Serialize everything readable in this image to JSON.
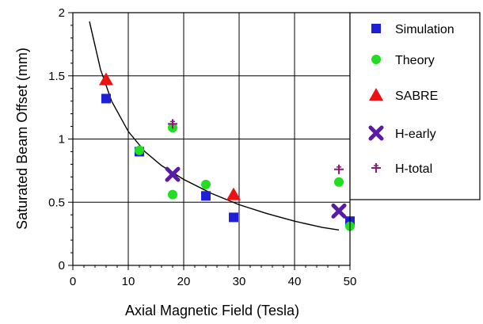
{
  "chart_data": {
    "type": "scatter",
    "title": "",
    "xlabel": "Axial Magnetic Field (Tesla)",
    "ylabel": "Saturated Beam Offset (mm)",
    "xlim": [
      0,
      50
    ],
    "ylim": [
      0,
      2
    ],
    "x_ticks": [
      0,
      10,
      20,
      30,
      40,
      50
    ],
    "y_ticks": [
      0,
      0.5,
      1,
      1.5,
      2
    ],
    "y_tick_labels": [
      "0",
      "0.5",
      "1",
      "1.5",
      "2"
    ],
    "grid": true,
    "legend_position": "right",
    "series": [
      {
        "name": "Simulation",
        "marker": "square",
        "color": "#1f1fd6",
        "points": [
          [
            6,
            1.32
          ],
          [
            12,
            0.9
          ],
          [
            24,
            0.55
          ],
          [
            29,
            0.38
          ],
          [
            50,
            0.35
          ]
        ]
      },
      {
        "name": "Theory",
        "marker": "circle",
        "color": "#22dd22",
        "points": [
          [
            12,
            0.91
          ],
          [
            18,
            1.09
          ],
          [
            18,
            0.56
          ],
          [
            24,
            0.64
          ],
          [
            48,
            0.66
          ],
          [
            50,
            0.31
          ]
        ]
      },
      {
        "name": "SABRE",
        "marker": "triangle",
        "color": "#ee1111",
        "points": [
          [
            6,
            1.47
          ],
          [
            29,
            0.56
          ]
        ]
      },
      {
        "name": "H-early",
        "marker": "x",
        "color": "#5a1aa8",
        "points": [
          [
            18,
            0.72
          ],
          [
            48,
            0.43
          ]
        ]
      },
      {
        "name": "H-total",
        "marker": "plus",
        "color": "#8a1a7a",
        "points": [
          [
            18,
            1.12
          ],
          [
            48,
            0.76
          ]
        ]
      }
    ],
    "fit_curve": {
      "color": "#000000",
      "points": [
        [
          3,
          1.93
        ],
        [
          5,
          1.55
        ],
        [
          7,
          1.3
        ],
        [
          10,
          1.06
        ],
        [
          13,
          0.9
        ],
        [
          16,
          0.79
        ],
        [
          20,
          0.68
        ],
        [
          25,
          0.57
        ],
        [
          30,
          0.48
        ],
        [
          35,
          0.41
        ],
        [
          40,
          0.35
        ],
        [
          45,
          0.3
        ],
        [
          48,
          0.28
        ]
      ]
    }
  }
}
